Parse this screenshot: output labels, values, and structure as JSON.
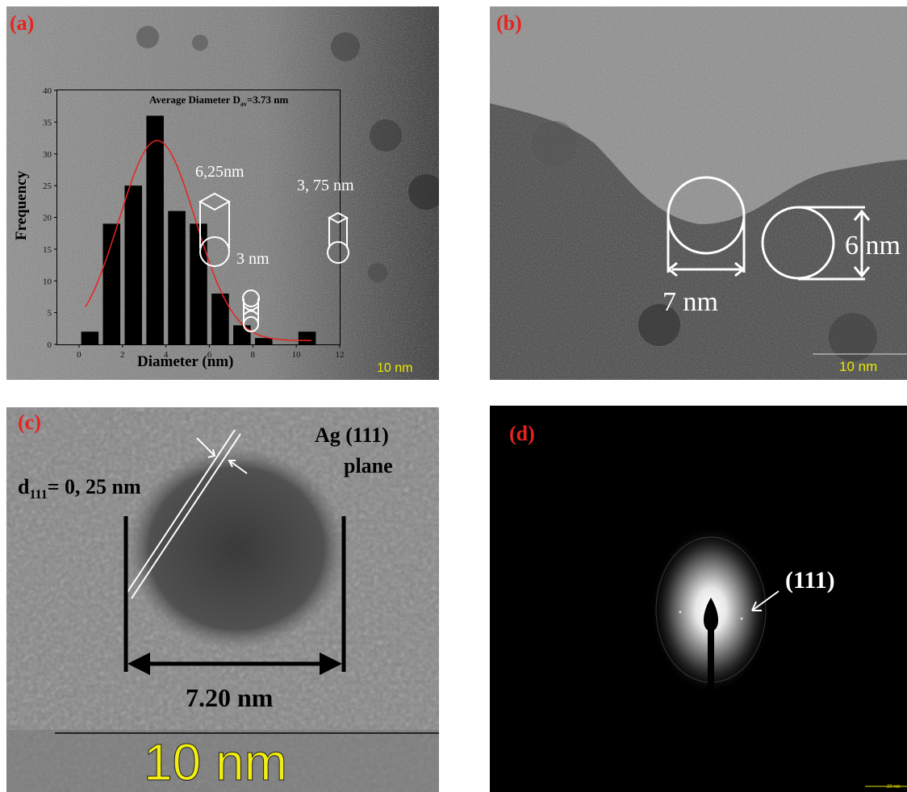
{
  "panel_a": {
    "label": "(a)",
    "scale_bar": "10 nm",
    "annotations": {
      "d1": "6,25nm",
      "d2": "3 nm",
      "d3": "3, 75 nm"
    },
    "chart_data": {
      "type": "bar",
      "title": "Average Diameter  D",
      "title_sub": "av",
      "title_value": "=3.73 nm",
      "xlabel": "Diameter (nm)",
      "ylabel": "Frequency",
      "xlim": [
        -1,
        12
      ],
      "ylim": [
        0,
        40
      ],
      "x_ticks": [
        0,
        2,
        4,
        6,
        8,
        10,
        12
      ],
      "y_ticks": [
        0,
        5,
        10,
        15,
        20,
        25,
        30,
        35,
        40
      ],
      "x": [
        0.5,
        1.5,
        2.5,
        3.5,
        4.5,
        5.5,
        6.5,
        7.5,
        8.5,
        10.5
      ],
      "values": [
        2,
        19,
        25,
        36,
        21,
        19,
        8,
        3,
        1,
        2
      ],
      "fit_curve": {
        "type": "gaussian",
        "mean": 3.6,
        "sigma": 1.75,
        "amplitude": 31.5,
        "baseline": 0.6,
        "color": "#e8231f"
      }
    }
  },
  "panel_b": {
    "label": "(b)",
    "scale_bar": "10 nm",
    "annotations": {
      "d1": "7 nm",
      "d2": "6 nm"
    }
  },
  "panel_c": {
    "label": "(c)",
    "scale_bar": "10 nm",
    "annotations": {
      "d_label": "d",
      "d_sub": "111",
      "d_value": "= 0, 25 nm",
      "plane_line1": "Ag (111)",
      "plane_line2": "plane",
      "width": "7.20 nm"
    }
  },
  "panel_d": {
    "label": "(d)",
    "scale_bar": "20 nm",
    "annotations": {
      "ring": "(111)"
    }
  },
  "colors": {
    "label_red": "#e8231f",
    "scale_yellow": "#e8e800"
  }
}
